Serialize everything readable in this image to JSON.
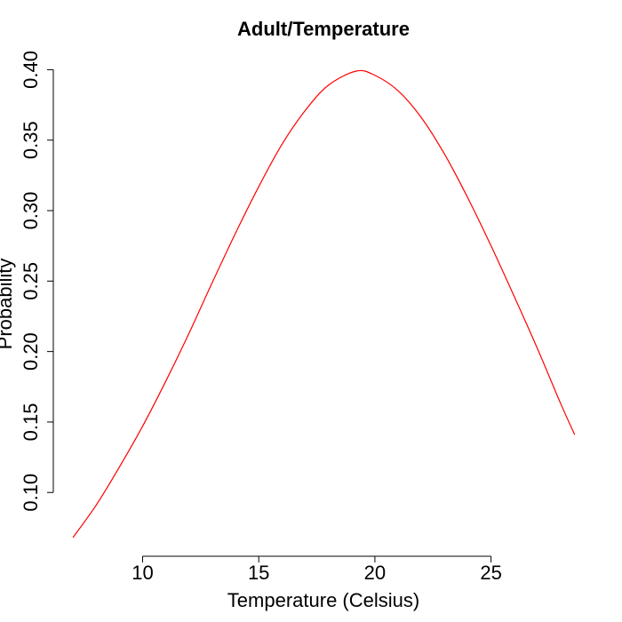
{
  "chart_data": {
    "type": "line",
    "title": "Adult/Temperature",
    "xlabel": "Temperature (Celsius)",
    "ylabel": "Probability",
    "xlim": [
      6.96,
      28.61
    ],
    "ylim": [
      0.068,
      0.399
    ],
    "x_ticks": [
      10,
      15,
      20,
      25
    ],
    "y_ticks": [
      0.1,
      0.15,
      0.2,
      0.25,
      0.3,
      0.35,
      0.4
    ],
    "y_tick_labels": [
      "0.10",
      "0.15",
      "0.20",
      "0.25",
      "0.30",
      "0.35",
      "0.40"
    ],
    "series": [
      {
        "color": "#ff0000",
        "x": [
          7.0,
          8.0,
          9.0,
          10.0,
          11.0,
          12.0,
          13.0,
          14.0,
          15.0,
          16.0,
          17.0,
          18.0,
          19.2,
          20.0,
          21.0,
          22.0,
          23.0,
          24.0,
          25.0,
          26.0,
          27.0,
          28.0,
          28.6
        ],
        "y": [
          0.068,
          0.091,
          0.118,
          0.147,
          0.179,
          0.213,
          0.249,
          0.284,
          0.317,
          0.347,
          0.371,
          0.389,
          0.399,
          0.396,
          0.385,
          0.366,
          0.34,
          0.309,
          0.275,
          0.239,
          0.202,
          0.163,
          0.141
        ]
      }
    ],
    "grid": false,
    "legend": "none"
  }
}
